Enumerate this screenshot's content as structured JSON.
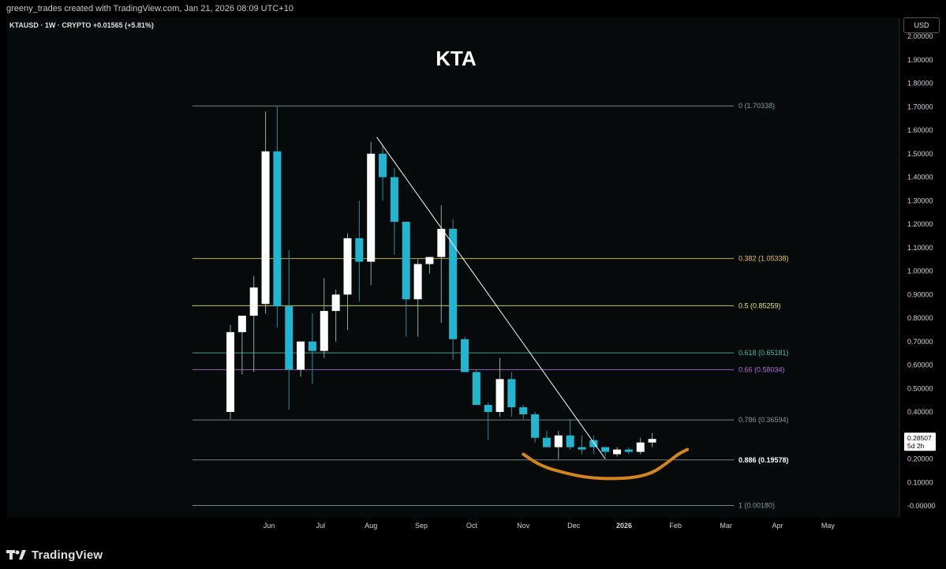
{
  "header": {
    "credit": "greeny_trades created with TradingView.com, Jan 21, 2026 08:09 UTC+10"
  },
  "currency_button": "USD",
  "footer": {
    "brand": "TradingView"
  },
  "colors": {
    "background": "#060a0a",
    "bull": "#ffffff",
    "bear": "#22b5cf",
    "wick": "#7a8c8c",
    "fib_default": "#8a9a9a",
    "fib_0382": "#e8c84a",
    "fib_05": "#e8e86a",
    "fib_0618": "#4db6a4",
    "fib_066": "#b36fd6",
    "trendline": "#ffffff",
    "cup_curve": "#d4861a"
  },
  "chart_data": {
    "type": "candlestick",
    "title": "KTA",
    "symbol_line": {
      "symbol": "KTAUSD · 1W · CRYPTO",
      "change": "+0.01565 (+5.81%)"
    },
    "y_axis": {
      "min": -0.05,
      "max": 2.0,
      "ticks": [
        "2.00000",
        "1.90000",
        "1.80000",
        "1.70000",
        "1.60000",
        "1.50000",
        "1.40000",
        "1.30000",
        "1.20000",
        "1.10000",
        "1.00000",
        "0.90000",
        "0.80000",
        "0.70000",
        "0.60000",
        "0.50000",
        "0.40000",
        "0.30000",
        "0.20000",
        "0.10000",
        "-0.00000"
      ],
      "tick_values": [
        2.0,
        1.9,
        1.8,
        1.7,
        1.6,
        1.5,
        1.4,
        1.3,
        1.2,
        1.1,
        1.0,
        0.9,
        0.8,
        0.7,
        0.6,
        0.5,
        0.4,
        0.3,
        0.2,
        0.1,
        0.0
      ]
    },
    "x_axis": {
      "labels": [
        {
          "text": "Jun",
          "week": 3.3,
          "bold": false
        },
        {
          "text": "Jul",
          "week": 7.7,
          "bold": false
        },
        {
          "text": "Aug",
          "week": 12.0,
          "bold": false
        },
        {
          "text": "Sep",
          "week": 16.3,
          "bold": false
        },
        {
          "text": "Oct",
          "week": 20.6,
          "bold": false
        },
        {
          "text": "Nov",
          "week": 25.0,
          "bold": false
        },
        {
          "text": "Dec",
          "week": 29.3,
          "bold": false
        },
        {
          "text": "2026",
          "week": 33.6,
          "bold": true
        },
        {
          "text": "Feb",
          "week": 38.0,
          "bold": false
        },
        {
          "text": "Mar",
          "week": 42.3,
          "bold": false
        },
        {
          "text": "Apr",
          "week": 46.7,
          "bold": false
        },
        {
          "text": "May",
          "week": 51.0,
          "bold": false
        }
      ]
    },
    "candles": [
      {
        "o": 0.4,
        "h": 0.77,
        "l": 0.37,
        "c": 0.74
      },
      {
        "o": 0.74,
        "h": 0.8,
        "l": 0.56,
        "c": 0.81
      },
      {
        "o": 0.81,
        "h": 0.98,
        "l": 0.57,
        "c": 0.93
      },
      {
        "o": 0.86,
        "h": 1.68,
        "l": 0.82,
        "c": 1.51
      },
      {
        "o": 1.51,
        "h": 1.7,
        "l": 0.76,
        "c": 0.85
      },
      {
        "o": 0.85,
        "h": 1.09,
        "l": 0.41,
        "c": 0.58
      },
      {
        "o": 0.58,
        "h": 0.7,
        "l": 0.55,
        "c": 0.7
      },
      {
        "o": 0.7,
        "h": 0.82,
        "l": 0.52,
        "c": 0.66
      },
      {
        "o": 0.66,
        "h": 0.97,
        "l": 0.63,
        "c": 0.83
      },
      {
        "o": 0.83,
        "h": 0.92,
        "l": 0.7,
        "c": 0.9
      },
      {
        "o": 0.9,
        "h": 1.16,
        "l": 0.75,
        "c": 1.14
      },
      {
        "o": 1.14,
        "h": 1.3,
        "l": 0.87,
        "c": 1.04
      },
      {
        "o": 1.04,
        "h": 1.55,
        "l": 0.94,
        "c": 1.5
      },
      {
        "o": 1.5,
        "h": 1.53,
        "l": 1.3,
        "c": 1.4
      },
      {
        "o": 1.4,
        "h": 1.44,
        "l": 1.07,
        "c": 1.21
      },
      {
        "o": 1.21,
        "h": 1.21,
        "l": 0.72,
        "c": 0.88
      },
      {
        "o": 0.88,
        "h": 1.05,
        "l": 0.72,
        "c": 1.03
      },
      {
        "o": 1.03,
        "h": 1.06,
        "l": 0.99,
        "c": 1.06
      },
      {
        "o": 1.06,
        "h": 1.28,
        "l": 0.78,
        "c": 1.18
      },
      {
        "o": 1.18,
        "h": 1.22,
        "l": 0.62,
        "c": 0.71
      },
      {
        "o": 0.71,
        "h": 0.72,
        "l": 0.57,
        "c": 0.57
      },
      {
        "o": 0.57,
        "h": 0.58,
        "l": 0.44,
        "c": 0.43
      },
      {
        "o": 0.43,
        "h": 0.44,
        "l": 0.28,
        "c": 0.4
      },
      {
        "o": 0.4,
        "h": 0.63,
        "l": 0.38,
        "c": 0.54
      },
      {
        "o": 0.54,
        "h": 0.57,
        "l": 0.38,
        "c": 0.42
      },
      {
        "o": 0.42,
        "h": 0.43,
        "l": 0.37,
        "c": 0.39
      },
      {
        "o": 0.39,
        "h": 0.4,
        "l": 0.27,
        "c": 0.29
      },
      {
        "o": 0.29,
        "h": 0.32,
        "l": 0.26,
        "c": 0.25
      },
      {
        "o": 0.25,
        "h": 0.32,
        "l": 0.2,
        "c": 0.3
      },
      {
        "o": 0.3,
        "h": 0.37,
        "l": 0.24,
        "c": 0.25
      },
      {
        "o": 0.25,
        "h": 0.3,
        "l": 0.22,
        "c": 0.24
      },
      {
        "o": 0.28,
        "h": 0.3,
        "l": 0.22,
        "c": 0.25
      },
      {
        "o": 0.25,
        "h": 0.25,
        "l": 0.21,
        "c": 0.23
      },
      {
        "o": 0.22,
        "h": 0.25,
        "l": 0.21,
        "c": 0.24
      },
      {
        "o": 0.24,
        "h": 0.25,
        "l": 0.22,
        "c": 0.23
      },
      {
        "o": 0.23,
        "h": 0.29,
        "l": 0.22,
        "c": 0.27
      },
      {
        "o": 0.27,
        "h": 0.31,
        "l": 0.25,
        "c": 0.285
      }
    ],
    "fib_levels": [
      {
        "ratio": "0",
        "label": "0 (1.70338)",
        "value": 1.70338,
        "color_key": "fib_default",
        "bold": false
      },
      {
        "ratio": "0.382",
        "label": "0.382 (1.05338)",
        "value": 1.05338,
        "color_key": "fib_0382",
        "bold": false
      },
      {
        "ratio": "0.5",
        "label": "0.5 (0.85259)",
        "value": 0.85259,
        "color_key": "fib_05",
        "bold": false
      },
      {
        "ratio": "0.618",
        "label": "0.618 (0.65181)",
        "value": 0.65181,
        "color_key": "fib_0618",
        "bold": false
      },
      {
        "ratio": "0.66",
        "label": "0.66 (0.58034)",
        "value": 0.58034,
        "color_key": "fib_066",
        "bold": false
      },
      {
        "ratio": "0.786",
        "label": "0.786 (0.36594)",
        "value": 0.36594,
        "color_key": "fib_default",
        "bold": false
      },
      {
        "ratio": "0.886",
        "label": "0.886 (0.19578)",
        "value": 0.19578,
        "color_key": "fib_default",
        "bold": true
      },
      {
        "ratio": "1",
        "label": "1 (0.00180)",
        "value": 0.0018,
        "color_key": "fib_default",
        "bold": false
      }
    ],
    "trendline": {
      "from": {
        "week": 12.5,
        "value": 1.57
      },
      "to": {
        "week": 32.0,
        "value": 0.2
      }
    },
    "cup_curve": [
      {
        "week": 25.0,
        "value": 0.22
      },
      {
        "week": 26.5,
        "value": 0.17
      },
      {
        "week": 28.5,
        "value": 0.14
      },
      {
        "week": 30.5,
        "value": 0.12
      },
      {
        "week": 32.5,
        "value": 0.115
      },
      {
        "week": 34.5,
        "value": 0.12
      },
      {
        "week": 36.0,
        "value": 0.14
      },
      {
        "week": 37.2,
        "value": 0.18
      },
      {
        "week": 38.2,
        "value": 0.22
      },
      {
        "week": 39.0,
        "value": 0.24
      }
    ],
    "last_price": {
      "value": "0.28507",
      "countdown": "5d 2h",
      "level": 0.28507
    }
  }
}
